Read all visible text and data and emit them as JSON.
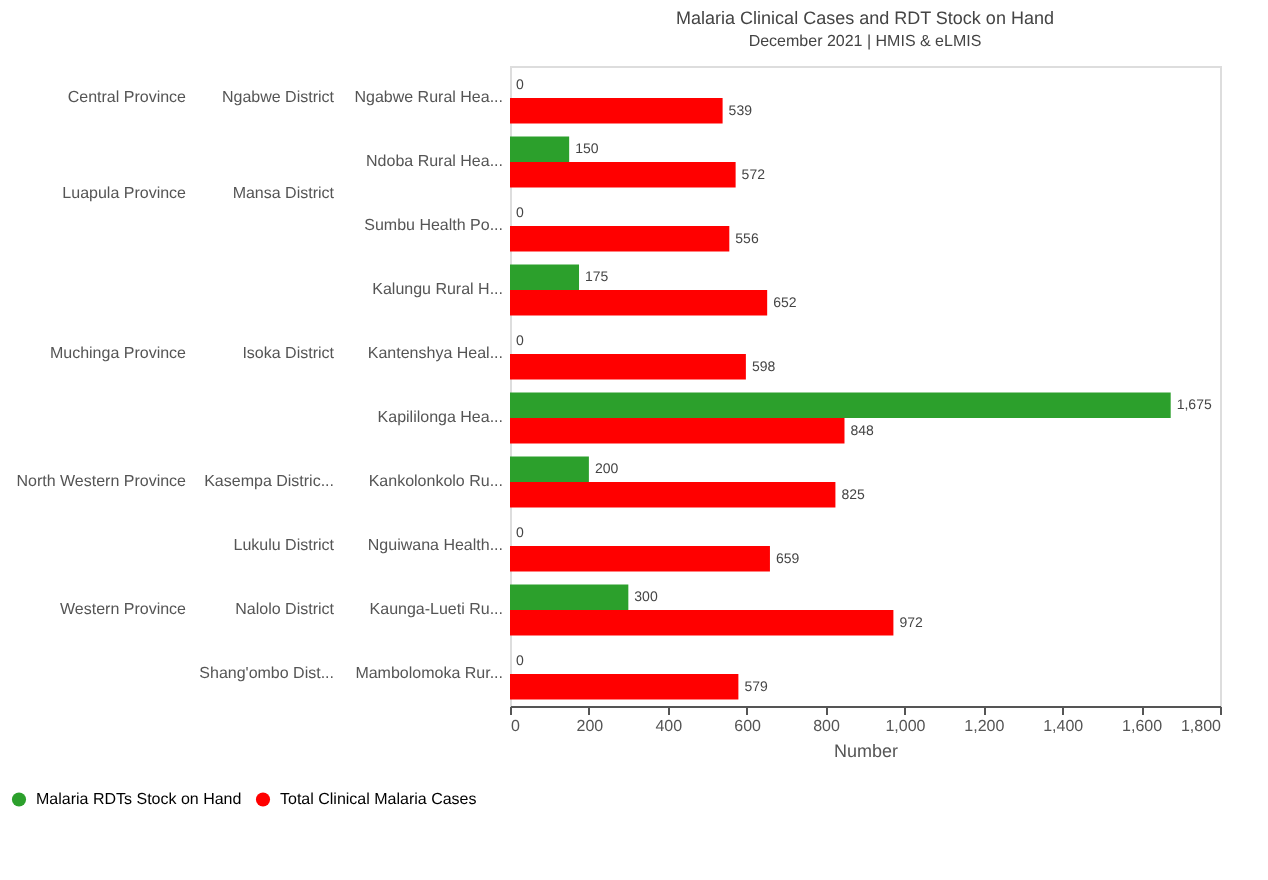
{
  "chart_data": {
    "type": "bar",
    "orientation": "horizontal",
    "title": "Malaria Clinical Cases and RDT Stock on Hand",
    "subtitle": "December 2021 | HMIS & eLMIS",
    "xlabel": "Number",
    "categories": [
      "Ngabwe Rural Hea...",
      "Ndoba Rural Hea...",
      "Sumbu Health Po...",
      "Kalungu Rural H...",
      "Kantenshya Heal...",
      "Kapililonga Hea...",
      "Kankolonkolo Ru...",
      "Nguiwana Health...",
      "Kaunga-Lueti Ru...",
      "Mambolomoka Rur..."
    ],
    "series": [
      {
        "name": "Malaria RDTs Stock on Hand",
        "color": "#2ca02c",
        "values": [
          0,
          150,
          0,
          175,
          0,
          1675,
          200,
          0,
          300,
          0
        ],
        "value_labels": [
          "0",
          "150",
          "0",
          "175",
          "0",
          "1,675",
          "200",
          "0",
          "300",
          "0"
        ]
      },
      {
        "name": "Total Clinical Malaria Cases",
        "color": "#ff0000",
        "values": [
          539,
          572,
          556,
          652,
          598,
          848,
          825,
          659,
          972,
          579
        ],
        "value_labels": [
          "539",
          "572",
          "556",
          "652",
          "598",
          "848",
          "825",
          "659",
          "972",
          "579"
        ]
      }
    ],
    "xlim": [
      0,
      1800
    ],
    "xticks": [
      0,
      200,
      400,
      600,
      800,
      {
        "value": 1000,
        "label": "1,000"
      },
      {
        "value": 1200,
        "label": "1,200"
      },
      {
        "value": 1400,
        "label": "1,400"
      },
      {
        "value": 1600,
        "label": "1,600"
      },
      {
        "value": 1800,
        "label": "1,800"
      }
    ],
    "grid": false,
    "legend": "bottom left",
    "annotations": [
      "Central Province",
      "Luapula Province",
      "Muchinga Province",
      "North Western Province",
      "Western Province",
      "Ngabwe District",
      "Mansa District",
      "Isoka District",
      "Kasempa Distric...",
      "Lukulu District",
      "Nalolo District",
      "Shang'ombo Dist..."
    ]
  }
}
